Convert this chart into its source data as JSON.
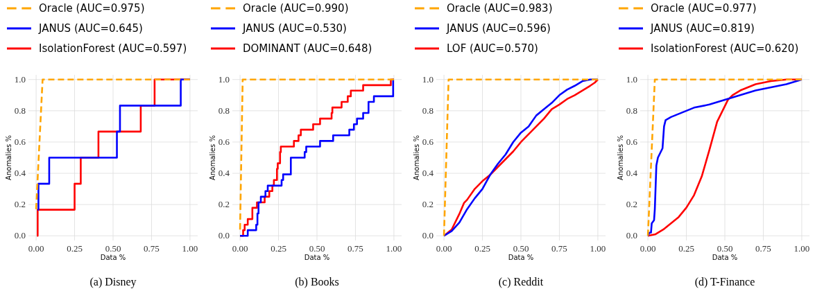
{
  "chart_data": [
    {
      "type": "line",
      "annotations": [
        "(a) Disney"
      ],
      "xlabel": "Data %",
      "ylabel": "Anomalies %",
      "xlim": [
        -0.05,
        1.05
      ],
      "ylim": [
        -0.03,
        1.03
      ],
      "xticks": [
        {
          "value": 0,
          "label": "0.00"
        },
        {
          "value": 0.25,
          "label": "0.25"
        },
        {
          "value": 0.5,
          "label": "0.50"
        },
        {
          "value": 0.75,
          "label": "0.75"
        },
        {
          "value": 1,
          "label": "1.00"
        }
      ],
      "yticks": [
        {
          "value": 0,
          "label": "0.0"
        },
        {
          "value": 0.2,
          "label": "0.2"
        },
        {
          "value": 0.4,
          "label": "0.4"
        },
        {
          "value": 0.6,
          "label": "0.6"
        },
        {
          "value": 0.8,
          "label": "0.8"
        },
        {
          "value": 1,
          "label": "1.0"
        }
      ],
      "grid": true,
      "legend": "top",
      "series": [
        {
          "name": "Oracle (AUC=0.975)",
          "color": "#ffa500",
          "line_style": "dashed",
          "x": [
            0,
            0.042,
            1
          ],
          "values": [
            0.17,
            1,
            1
          ]
        },
        {
          "name": "JANUS (AUC=0.645)",
          "color": "#0000ff",
          "type": "step",
          "x": [
            0.01,
            0.015,
            0.085,
            0.525,
            0.545,
            0.94,
            1
          ],
          "values": [
            0.167,
            0.333,
            0.5,
            0.667,
            0.833,
            1,
            1
          ]
        },
        {
          "name": "IsolationForest (AUC=0.597)",
          "color": "#ff0000",
          "type": "step",
          "x": [
            0.005,
            0.01,
            0.25,
            0.29,
            0.405,
            0.68,
            0.77,
            1
          ],
          "values": [
            0,
            0.167,
            0.333,
            0.5,
            0.667,
            0.833,
            1,
            1
          ]
        }
      ]
    },
    {
      "type": "line",
      "annotations": [
        "(b) Books"
      ],
      "xlabel": "Data %",
      "ylabel": "Anomalies %",
      "xlim": [
        -0.05,
        1.05
      ],
      "ylim": [
        -0.03,
        1.03
      ],
      "xticks": [
        {
          "value": 0,
          "label": "0.00"
        },
        {
          "value": 0.25,
          "label": "0.25"
        },
        {
          "value": 0.5,
          "label": "0.50"
        },
        {
          "value": 0.75,
          "label": "0.75"
        },
        {
          "value": 1,
          "label": "1.00"
        }
      ],
      "yticks": [
        {
          "value": 0,
          "label": "0.0"
        },
        {
          "value": 0.2,
          "label": "0.2"
        },
        {
          "value": 0.4,
          "label": "0.4"
        },
        {
          "value": 0.6,
          "label": "0.6"
        },
        {
          "value": 0.8,
          "label": "0.8"
        },
        {
          "value": 1,
          "label": "1.0"
        }
      ],
      "grid": true,
      "legend": "top",
      "series": [
        {
          "name": "Oracle (AUC=0.990)",
          "color": "#ffa500",
          "line_style": "dashed",
          "x": [
            0,
            0.017,
            1
          ],
          "values": [
            0.04,
            1,
            1
          ]
        },
        {
          "name": "JANUS (AUC=0.530)",
          "color": "#0000ff",
          "type": "step",
          "x": [
            0,
            0.05,
            0.105,
            0.113,
            0.12,
            0.135,
            0.165,
            0.18,
            0.27,
            0.28,
            0.33,
            0.42,
            0.43,
            0.52,
            0.605,
            0.71,
            0.74,
            0.76,
            0.8,
            0.835,
            0.87,
            0.995,
            1
          ],
          "values": [
            0,
            0.036,
            0.071,
            0.143,
            0.214,
            0.25,
            0.286,
            0.321,
            0.357,
            0.393,
            0.5,
            0.536,
            0.571,
            0.607,
            0.643,
            0.679,
            0.714,
            0.75,
            0.786,
            0.857,
            0.893,
            1,
            1
          ]
        },
        {
          "name": "DOMINANT (AUC=0.648)",
          "color": "#ff0000",
          "type": "step",
          "x": [
            0,
            0.02,
            0.03,
            0.05,
            0.08,
            0.11,
            0.16,
            0.19,
            0.21,
            0.22,
            0.24,
            0.245,
            0.26,
            0.265,
            0.35,
            0.38,
            0.395,
            0.475,
            0.52,
            0.595,
            0.6,
            0.66,
            0.7,
            0.72,
            0.8,
            0.98,
            1
          ],
          "values": [
            0,
            0.036,
            0.071,
            0.107,
            0.179,
            0.214,
            0.25,
            0.286,
            0.321,
            0.357,
            0.429,
            0.464,
            0.536,
            0.571,
            0.607,
            0.643,
            0.679,
            0.714,
            0.75,
            0.786,
            0.821,
            0.857,
            0.893,
            0.929,
            0.964,
            1,
            1
          ]
        }
      ]
    },
    {
      "type": "line",
      "annotations": [
        "(c) Reddit"
      ],
      "xlabel": "Data %",
      "ylabel": "Anomalies %",
      "xlim": [
        -0.05,
        1.05
      ],
      "ylim": [
        -0.03,
        1.03
      ],
      "xticks": [
        {
          "value": 0,
          "label": "0.00"
        },
        {
          "value": 0.25,
          "label": "0.25"
        },
        {
          "value": 0.5,
          "label": "0.50"
        },
        {
          "value": 0.75,
          "label": "0.75"
        },
        {
          "value": 1,
          "label": "1.00"
        }
      ],
      "yticks": [
        {
          "value": 0,
          "label": "0.0"
        },
        {
          "value": 0.2,
          "label": "0.2"
        },
        {
          "value": 0.4,
          "label": "0.4"
        },
        {
          "value": 0.6,
          "label": "0.6"
        },
        {
          "value": 0.8,
          "label": "0.8"
        },
        {
          "value": 1,
          "label": "1.0"
        }
      ],
      "grid": true,
      "legend": "top",
      "series": [
        {
          "name": "Oracle (AUC=0.983)",
          "color": "#ffa500",
          "line_style": "dashed",
          "x": [
            0,
            0.03,
            1
          ],
          "values": [
            0,
            1,
            1
          ]
        },
        {
          "name": "JANUS (AUC=0.596)",
          "color": "#0000ff",
          "x": [
            0,
            0.05,
            0.1,
            0.15,
            0.2,
            0.25,
            0.3,
            0.35,
            0.4,
            0.45,
            0.5,
            0.55,
            0.6,
            0.65,
            0.7,
            0.75,
            0.8,
            0.85,
            0.9,
            0.95,
            1
          ],
          "values": [
            0,
            0.03,
            0.085,
            0.17,
            0.24,
            0.3,
            0.39,
            0.46,
            0.52,
            0.6,
            0.66,
            0.7,
            0.77,
            0.81,
            0.85,
            0.9,
            0.935,
            0.96,
            0.99,
            1,
            1
          ]
        },
        {
          "name": "LOF (AUC=0.570)",
          "color": "#ff0000",
          "x": [
            0,
            0.05,
            0.1,
            0.13,
            0.15,
            0.2,
            0.25,
            0.3,
            0.35,
            0.4,
            0.45,
            0.5,
            0.55,
            0.6,
            0.65,
            0.7,
            0.75,
            0.8,
            0.85,
            0.9,
            0.95,
            0.98,
            1
          ],
          "values": [
            0,
            0.04,
            0.14,
            0.21,
            0.23,
            0.3,
            0.35,
            0.39,
            0.44,
            0.49,
            0.54,
            0.6,
            0.65,
            0.7,
            0.75,
            0.81,
            0.84,
            0.875,
            0.9,
            0.93,
            0.96,
            0.98,
            1
          ]
        }
      ]
    },
    {
      "type": "line",
      "annotations": [
        "(d) T-Finance"
      ],
      "xlabel": "Data %",
      "ylabel": "Anomalies %",
      "xlim": [
        -0.05,
        1.05
      ],
      "ylim": [
        -0.03,
        1.03
      ],
      "xticks": [
        {
          "value": 0,
          "label": "0.00"
        },
        {
          "value": 0.25,
          "label": "0.25"
        },
        {
          "value": 0.5,
          "label": "0.50"
        },
        {
          "value": 0.75,
          "label": "0.75"
        },
        {
          "value": 1,
          "label": "1.00"
        }
      ],
      "yticks": [
        {
          "value": 0,
          "label": "0.0"
        },
        {
          "value": 0.2,
          "label": "0.2"
        },
        {
          "value": 0.4,
          "label": "0.4"
        },
        {
          "value": 0.6,
          "label": "0.6"
        },
        {
          "value": 0.8,
          "label": "0.8"
        },
        {
          "value": 1,
          "label": "1.0"
        }
      ],
      "grid": true,
      "legend": "top",
      "series": [
        {
          "name": "Oracle (AUC=0.977)",
          "color": "#ffa500",
          "line_style": "dashed",
          "x": [
            0,
            0.045,
            1
          ],
          "values": [
            0,
            1,
            1
          ]
        },
        {
          "name": "JANUS (AUC=0.819)",
          "color": "#0000ff",
          "x": [
            0,
            0.01,
            0.02,
            0.025,
            0.04,
            0.045,
            0.055,
            0.065,
            0.08,
            0.095,
            0.105,
            0.115,
            0.15,
            0.2,
            0.25,
            0.3,
            0.4,
            0.5,
            0.6,
            0.7,
            0.8,
            0.9,
            1
          ],
          "values": [
            0,
            0.02,
            0.02,
            0.08,
            0.1,
            0.17,
            0.45,
            0.5,
            0.53,
            0.56,
            0.7,
            0.74,
            0.76,
            0.78,
            0.8,
            0.82,
            0.84,
            0.87,
            0.9,
            0.93,
            0.95,
            0.97,
            1
          ]
        },
        {
          "name": "IsolationForest (AUC=0.620)",
          "color": "#ff0000",
          "x": [
            0,
            0.05,
            0.1,
            0.15,
            0.2,
            0.25,
            0.3,
            0.35,
            0.4,
            0.45,
            0.5,
            0.52,
            0.55,
            0.6,
            0.65,
            0.7,
            0.8,
            0.9,
            1
          ],
          "values": [
            0,
            0.01,
            0.04,
            0.08,
            0.12,
            0.18,
            0.26,
            0.38,
            0.55,
            0.73,
            0.83,
            0.87,
            0.9,
            0.93,
            0.95,
            0.97,
            0.99,
            1,
            1
          ]
        }
      ]
    }
  ]
}
